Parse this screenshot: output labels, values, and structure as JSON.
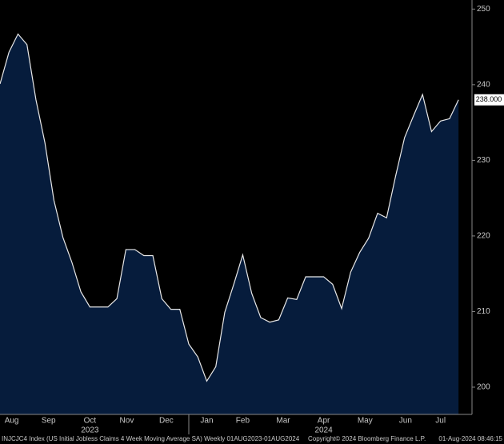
{
  "chart_data": {
    "type": "area",
    "values": [
      240.1,
      244.3,
      246.7,
      245.3,
      238.0,
      232.3,
      224.7,
      219.8,
      216.5,
      212.6,
      210.6,
      210.6,
      210.6,
      211.7,
      218.2,
      218.2,
      217.4,
      217.4,
      211.7,
      210.3,
      210.3,
      205.7,
      204.0,
      200.8,
      202.7,
      209.9,
      213.6,
      217.5,
      212.4,
      209.2,
      208.6,
      208.9,
      211.8,
      211.6,
      214.6,
      214.6,
      214.6,
      213.6,
      210.4,
      215.2,
      217.8,
      219.7,
      223.0,
      222.4,
      227.9,
      233.0,
      235.9,
      238.7,
      233.8,
      235.2,
      235.5,
      238.0
    ],
    "color": "#061c3c",
    "line_color": "#e8e8e8",
    "xlim": [
      0,
      52.5
    ],
    "xticks": [
      {
        "value": 1.3,
        "label": "Aug"
      },
      {
        "value": 5.4,
        "label": "Sep"
      },
      {
        "value": 10,
        "label": "Oct"
      },
      {
        "value": 14.1,
        "label": "Nov"
      },
      {
        "value": 18.5,
        "label": "Dec"
      },
      {
        "value": 23,
        "label": "Jan"
      },
      {
        "value": 27,
        "label": "Feb"
      },
      {
        "value": 31.5,
        "label": "Mar"
      },
      {
        "value": 36,
        "label": "Apr"
      },
      {
        "value": 40.6,
        "label": "May"
      },
      {
        "value": 45.1,
        "label": "Jun"
      },
      {
        "value": 49,
        "label": "Jul"
      }
    ],
    "years": [
      {
        "value": 10,
        "label": "2023"
      },
      {
        "value": 36,
        "label": "2024"
      }
    ],
    "year_break": 21,
    "ylim": [
      196.4,
      251.2
    ],
    "yticks": [
      200,
      210,
      220,
      230,
      240,
      250
    ],
    "last_label": "238.000",
    "footer_left": "INJCJC4 Index (US Initial Jobless Claims 4 Week Moving Average SA)  Weekly 01AUG2023-01AUG2024",
    "footer_mid": "Copyright© 2024 Bloomberg Finance L.P.",
    "footer_right": "01-Aug-2024 08:46:15"
  }
}
